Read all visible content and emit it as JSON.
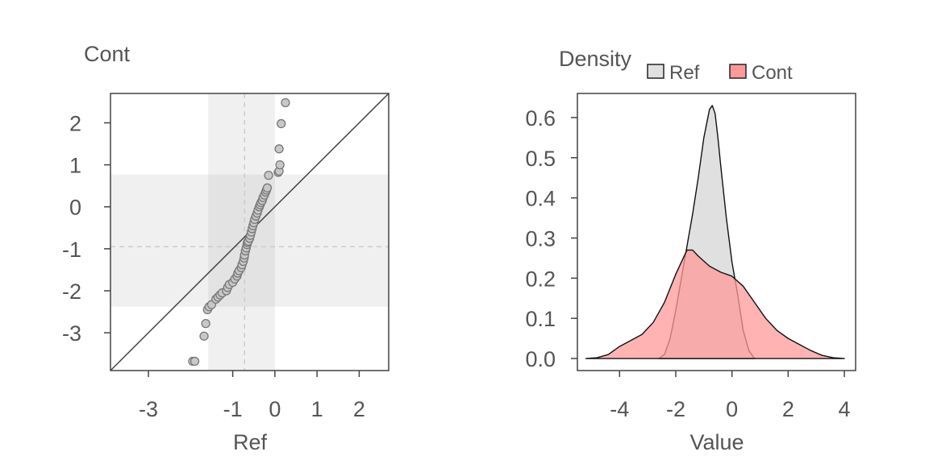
{
  "chart_data": [
    {
      "type": "scatter",
      "subtype": "qq-plot",
      "ylabel": "Cont",
      "xlabel": "Ref",
      "xticks": [
        -3,
        -1,
        0,
        1,
        2
      ],
      "xtick_labels": [
        "-3",
        "-1",
        "0",
        "1",
        "2"
      ],
      "yticks": [
        2,
        1,
        0,
        -1,
        -2,
        -3
      ],
      "ytick_labels": [
        "2",
        "1",
        "0",
        "-1",
        "-2",
        "-3"
      ],
      "xlim": [
        -3.9,
        2.7
      ],
      "ylim": [
        -3.9,
        2.7
      ],
      "reference_line": "y = x",
      "dashed_lines": {
        "x": -0.72,
        "y": -0.95
      },
      "shaded_bands": {
        "x": [
          -1.58,
          0.0
        ],
        "y": [
          -2.38,
          0.77
        ]
      },
      "colors": {
        "points": "#c8c8c8",
        "band": "#f0f0f0",
        "band_overlap": "#e3e3e3",
        "line": "#444444"
      },
      "points": [
        [
          -1.95,
          -3.68
        ],
        [
          -1.9,
          -3.68
        ],
        [
          -1.68,
          -3.08
        ],
        [
          -1.64,
          -2.78
        ],
        [
          -1.6,
          -2.45
        ],
        [
          -1.56,
          -2.38
        ],
        [
          -1.5,
          -2.33
        ],
        [
          -1.4,
          -2.2
        ],
        [
          -1.35,
          -2.15
        ],
        [
          -1.3,
          -2.1
        ],
        [
          -1.25,
          -2.05
        ],
        [
          -1.15,
          -2.0
        ],
        [
          -1.12,
          -1.92
        ],
        [
          -1.08,
          -1.85
        ],
        [
          -1.0,
          -1.8
        ],
        [
          -0.95,
          -1.72
        ],
        [
          -0.9,
          -1.65
        ],
        [
          -0.88,
          -1.58
        ],
        [
          -0.85,
          -1.52
        ],
        [
          -0.8,
          -1.45
        ],
        [
          -0.78,
          -1.38
        ],
        [
          -0.75,
          -1.3
        ],
        [
          -0.73,
          -1.22
        ],
        [
          -0.72,
          -1.15
        ],
        [
          -0.7,
          -1.05
        ],
        [
          -0.68,
          -0.98
        ],
        [
          -0.66,
          -0.9
        ],
        [
          -0.65,
          -0.85
        ],
        [
          -0.63,
          -0.82
        ],
        [
          -0.6,
          -0.75
        ],
        [
          -0.58,
          -0.68
        ],
        [
          -0.56,
          -0.6
        ],
        [
          -0.54,
          -0.52
        ],
        [
          -0.52,
          -0.45
        ],
        [
          -0.5,
          -0.38
        ],
        [
          -0.48,
          -0.3
        ],
        [
          -0.45,
          -0.22
        ],
        [
          -0.42,
          -0.15
        ],
        [
          -0.4,
          -0.08
        ],
        [
          -0.37,
          0.0
        ],
        [
          -0.35,
          0.05
        ],
        [
          -0.33,
          0.1
        ],
        [
          -0.3,
          0.15
        ],
        [
          -0.28,
          0.22
        ],
        [
          -0.25,
          0.28
        ],
        [
          -0.22,
          0.35
        ],
        [
          -0.2,
          0.4
        ],
        [
          -0.18,
          0.45
        ],
        [
          -0.15,
          0.75
        ],
        [
          0.08,
          0.82
        ],
        [
          0.1,
          0.85
        ],
        [
          0.12,
          1.0
        ],
        [
          0.1,
          1.38
        ],
        [
          0.15,
          1.98
        ],
        [
          0.25,
          2.48
        ]
      ]
    },
    {
      "type": "area",
      "subtype": "density",
      "ylabel": "Density",
      "xlabel": "Value",
      "xticks": [
        -4,
        -2,
        0,
        2,
        4
      ],
      "xtick_labels": [
        "-4",
        "-2",
        "0",
        "2",
        "4"
      ],
      "yticks": [
        0.0,
        0.1,
        0.2,
        0.3,
        0.4,
        0.5,
        0.6
      ],
      "ytick_labels": [
        "0.0",
        "0.1",
        "0.2",
        "0.3",
        "0.4",
        "0.5",
        "0.6"
      ],
      "xlim": [
        -5.5,
        4.4
      ],
      "ylim": [
        -0.03,
        0.66
      ],
      "legend_position": "top",
      "series": [
        {
          "name": "Ref",
          "color": "#e0e0e0",
          "x": [
            -2.6,
            -2.4,
            -2.2,
            -2.0,
            -1.8,
            -1.6,
            -1.4,
            -1.2,
            -1.0,
            -0.8,
            -0.7,
            -0.6,
            -0.5,
            -0.4,
            -0.2,
            0.0,
            0.2,
            0.4,
            0.6,
            0.8
          ],
          "y": [
            0.0,
            0.01,
            0.05,
            0.12,
            0.2,
            0.28,
            0.36,
            0.45,
            0.55,
            0.62,
            0.63,
            0.61,
            0.55,
            0.48,
            0.35,
            0.24,
            0.16,
            0.07,
            0.02,
            0.0
          ]
        },
        {
          "name": "Cont",
          "color": "#ff9999",
          "x": [
            -5.2,
            -4.8,
            -4.4,
            -4.0,
            -3.6,
            -3.2,
            -2.8,
            -2.4,
            -2.0,
            -1.6,
            -1.4,
            -1.2,
            -0.8,
            -0.4,
            0.0,
            0.4,
            0.8,
            1.2,
            1.6,
            2.0,
            2.4,
            2.8,
            3.2,
            3.6,
            4.0
          ],
          "y": [
            0.0,
            0.002,
            0.01,
            0.03,
            0.045,
            0.06,
            0.09,
            0.14,
            0.21,
            0.27,
            0.27,
            0.255,
            0.23,
            0.215,
            0.205,
            0.18,
            0.14,
            0.1,
            0.07,
            0.05,
            0.035,
            0.02,
            0.008,
            0.002,
            0.0
          ]
        }
      ]
    }
  ]
}
